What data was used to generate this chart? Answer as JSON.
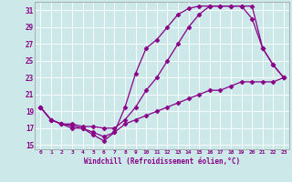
{
  "xlabel": "Windchill (Refroidissement éolien,°C)",
  "background_color": "#cce8e8",
  "line_color": "#880088",
  "xlim": [
    -0.5,
    23.5
  ],
  "ylim": [
    14.5,
    32.0
  ],
  "xticks": [
    0,
    1,
    2,
    3,
    4,
    5,
    6,
    7,
    8,
    9,
    10,
    11,
    12,
    13,
    14,
    15,
    16,
    17,
    18,
    19,
    20,
    21,
    22,
    23
  ],
  "yticks": [
    15,
    17,
    19,
    21,
    23,
    25,
    27,
    29,
    31
  ],
  "line1_x": [
    0,
    1,
    2,
    3,
    4,
    5,
    6,
    7,
    8,
    9,
    10,
    11,
    12,
    13,
    14,
    15,
    16,
    17,
    18,
    19,
    20,
    21,
    22,
    23
  ],
  "line1_y": [
    19.5,
    18.0,
    17.5,
    17.0,
    17.0,
    16.2,
    15.5,
    16.5,
    19.5,
    23.5,
    26.5,
    27.5,
    29.0,
    30.5,
    31.2,
    31.5,
    31.5,
    31.5,
    31.5,
    31.5,
    31.5,
    26.5,
    24.5,
    23.0
  ],
  "line2_x": [
    0,
    1,
    2,
    3,
    4,
    5,
    6,
    7,
    8,
    9,
    10,
    11,
    12,
    13,
    14,
    15,
    16,
    17,
    18,
    19,
    20,
    21,
    22,
    23
  ],
  "line2_y": [
    19.5,
    18.0,
    17.5,
    17.5,
    17.2,
    17.2,
    17.0,
    17.0,
    18.0,
    19.5,
    21.5,
    23.0,
    25.0,
    27.0,
    29.0,
    30.5,
    31.5,
    31.5,
    31.5,
    31.5,
    30.0,
    26.5,
    24.5,
    23.0
  ],
  "line3_x": [
    0,
    1,
    2,
    3,
    4,
    5,
    6,
    7,
    8,
    9,
    10,
    11,
    12,
    13,
    14,
    15,
    16,
    17,
    18,
    19,
    20,
    21,
    22,
    23
  ],
  "line3_y": [
    19.5,
    18.0,
    17.5,
    17.3,
    17.0,
    16.5,
    16.0,
    16.5,
    17.5,
    18.0,
    18.5,
    19.0,
    19.5,
    20.0,
    20.5,
    21.0,
    21.5,
    21.5,
    22.0,
    22.5,
    22.5,
    22.5,
    22.5,
    23.0
  ]
}
